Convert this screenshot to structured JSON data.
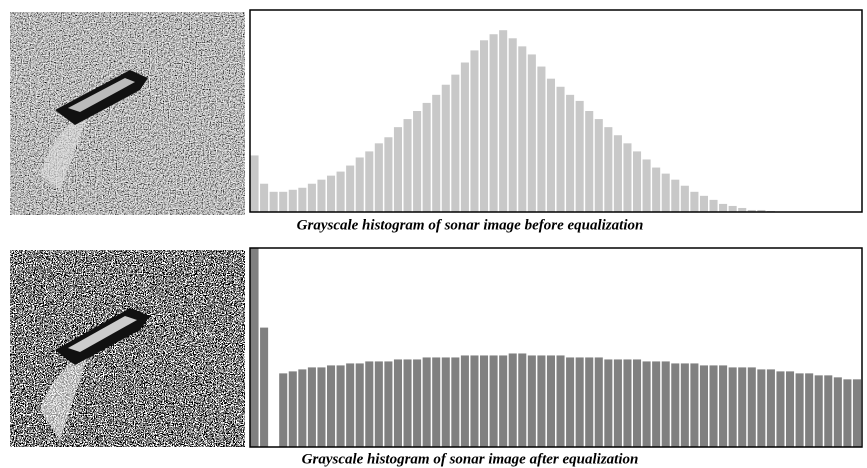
{
  "chart_data": [
    {
      "type": "histogram",
      "title": "Grayscale histogram of sonar image before equalization",
      "color": "#c8c8c8",
      "bins": [
        0,
        4,
        8,
        12,
        16,
        20,
        24,
        28,
        32,
        36,
        40,
        44,
        48,
        52,
        56,
        60,
        64,
        68,
        72,
        76,
        80,
        84,
        88,
        92,
        96,
        100,
        104,
        108,
        112,
        116,
        120,
        124,
        128,
        132,
        136,
        140,
        144,
        148,
        152,
        156,
        160,
        164,
        168,
        172,
        176,
        180,
        184,
        188,
        192,
        196,
        200,
        204,
        208,
        212,
        216,
        220,
        224,
        228,
        232,
        236,
        240,
        244,
        248,
        252,
        256
      ],
      "values": [
        28,
        14,
        10,
        10,
        11,
        12,
        14,
        16,
        18,
        20,
        23,
        27,
        30,
        34,
        37,
        42,
        46,
        50,
        54,
        58,
        63,
        68,
        74,
        80,
        85,
        88,
        90,
        86,
        82,
        78,
        72,
        66,
        62,
        58,
        55,
        50,
        46,
        42,
        38,
        34,
        30,
        26,
        22,
        19,
        16,
        13,
        10,
        8,
        6,
        4,
        3,
        2,
        1,
        1,
        0.5,
        0,
        0,
        0,
        0,
        0,
        0,
        0,
        0,
        0
      ],
      "xlim": [
        0,
        256
      ],
      "ylim": [
        0,
        100
      ]
    },
    {
      "type": "histogram",
      "title": "Grayscale histogram of sonar image after equalization",
      "color": "#808080",
      "bins": [
        0,
        4,
        8,
        12,
        16,
        20,
        24,
        28,
        32,
        36,
        40,
        44,
        48,
        52,
        56,
        60,
        64,
        68,
        72,
        76,
        80,
        84,
        88,
        92,
        96,
        100,
        104,
        108,
        112,
        116,
        120,
        124,
        128,
        132,
        136,
        140,
        144,
        148,
        152,
        156,
        160,
        164,
        168,
        172,
        176,
        180,
        184,
        188,
        192,
        196,
        200,
        204,
        208,
        212,
        216,
        220,
        224,
        228,
        232,
        236,
        240,
        244,
        248,
        252,
        256
      ],
      "values": [
        100,
        60,
        0,
        37,
        38,
        39,
        40,
        40,
        41,
        41,
        42,
        42,
        43,
        43,
        43,
        44,
        44,
        44,
        45,
        45,
        45,
        45,
        46,
        46,
        46,
        46,
        46,
        47,
        47,
        46,
        46,
        46,
        46,
        45,
        45,
        45,
        45,
        44,
        44,
        44,
        44,
        43,
        43,
        43,
        42,
        42,
        42,
        41,
        41,
        41,
        40,
        40,
        40,
        39,
        39,
        38,
        38,
        37,
        37,
        36,
        36,
        35,
        34,
        34
      ],
      "xlim": [
        0,
        256
      ],
      "ylim": [
        0,
        100
      ]
    }
  ]
}
